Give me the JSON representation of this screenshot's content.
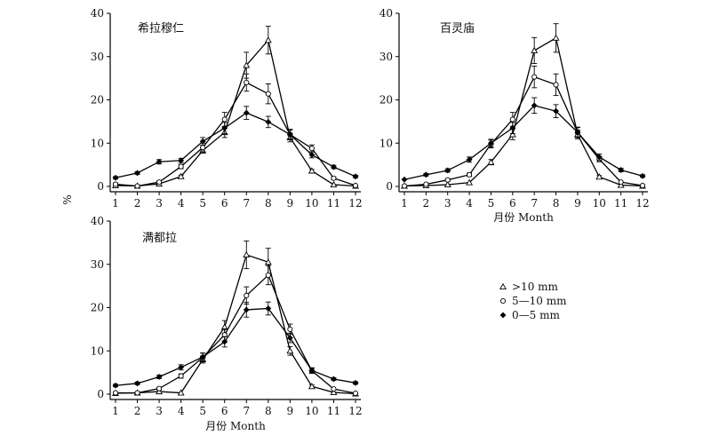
{
  "chart_data": [
    {
      "type": "line",
      "title": "希拉穆仁",
      "xlabel": "",
      "ylabel": "%",
      "categories": [
        "1",
        "2",
        "3",
        "4",
        "5",
        "6",
        "7",
        "8",
        "9",
        "10",
        "11",
        "12"
      ],
      "xlim": [
        1,
        12
      ],
      "ylim": [
        0,
        40
      ],
      "yticks": [
        0,
        10,
        20,
        30,
        40
      ],
      "series": [
        {
          "name": ">10 mm",
          "values": [
            0.2,
            0.1,
            0.6,
            2.3,
            8.3,
            12.5,
            28.0,
            33.8,
            11.3,
            3.6,
            0.4,
            0.1
          ],
          "errors": [
            0.3,
            0.2,
            0.3,
            0.3,
            0.6,
            1.2,
            3.0,
            3.2,
            1.0,
            0.3,
            0.2,
            0.1
          ]
        },
        {
          "name": "5—10 mm",
          "values": [
            0.5,
            0.1,
            1.0,
            4.6,
            9.0,
            15.5,
            24.0,
            21.4,
            12.0,
            8.8,
            1.9,
            0.2
          ],
          "errors": [
            0.3,
            0.2,
            0.3,
            0.5,
            1.0,
            1.6,
            2.0,
            2.3,
            1.2,
            0.8,
            0.3,
            0.1
          ]
        },
        {
          "name": "0—5 mm",
          "values": [
            2.0,
            3.1,
            5.7,
            6.0,
            10.4,
            13.5,
            17.0,
            14.9,
            12.0,
            7.3,
            4.5,
            2.3
          ],
          "errors": [
            0.3,
            0.3,
            0.5,
            0.5,
            0.9,
            1.3,
            1.5,
            1.3,
            1.0,
            0.7,
            0.4,
            0.3
          ]
        }
      ]
    },
    {
      "type": "line",
      "title": "百灵庙",
      "xlabel": "月份  Month",
      "ylabel": "",
      "categories": [
        "1",
        "2",
        "3",
        "4",
        "5",
        "6",
        "7",
        "8",
        "9",
        "10",
        "11",
        "12"
      ],
      "xlim": [
        1,
        12
      ],
      "ylim": [
        0,
        40
      ],
      "yticks": [
        0,
        10,
        20,
        30,
        40
      ],
      "series": [
        {
          "name": ">10 mm",
          "values": [
            0.1,
            0.2,
            0.4,
            0.9,
            5.6,
            12.0,
            31.4,
            34.3,
            12.0,
            2.2,
            0.3,
            0.1
          ],
          "errors": [
            0.1,
            0.1,
            0.2,
            0.2,
            0.6,
            1.2,
            3.0,
            3.3,
            1.0,
            0.3,
            0.1,
            0.1
          ]
        },
        {
          "name": "5—10 mm",
          "values": [
            0.1,
            0.5,
            1.5,
            2.7,
            9.8,
            15.5,
            25.3,
            23.5,
            12.5,
            6.3,
            1.0,
            0.2
          ],
          "errors": [
            0.1,
            0.2,
            0.3,
            0.4,
            0.9,
            1.6,
            2.5,
            2.5,
            1.2,
            0.6,
            0.2,
            0.1
          ]
        },
        {
          "name": "0—5 mm",
          "values": [
            1.6,
            2.7,
            3.7,
            6.2,
            10.0,
            13.5,
            18.7,
            17.4,
            12.5,
            6.8,
            3.8,
            2.4
          ],
          "errors": [
            0.2,
            0.3,
            0.4,
            0.6,
            0.9,
            1.3,
            1.8,
            1.5,
            1.1,
            0.7,
            0.4,
            0.3
          ]
        }
      ]
    },
    {
      "type": "line",
      "title": "满都拉",
      "xlabel": "月份  Month",
      "ylabel": "",
      "categories": [
        "1",
        "2",
        "3",
        "4",
        "5",
        "6",
        "7",
        "8",
        "9",
        "10",
        "11",
        "12"
      ],
      "xlim": [
        1,
        12
      ],
      "ylim": [
        0,
        40
      ],
      "yticks": [
        0,
        10,
        20,
        30,
        40
      ],
      "series": [
        {
          "name": ">10 mm",
          "values": [
            0.2,
            0.3,
            0.6,
            0.3,
            8.0,
            15.5,
            32.2,
            30.5,
            10.0,
            1.8,
            0.4,
            0.1
          ],
          "errors": [
            0.1,
            0.1,
            0.2,
            0.2,
            0.8,
            1.5,
            3.2,
            3.2,
            1.0,
            0.3,
            0.2,
            0.1
          ]
        },
        {
          "name": "5—10 mm",
          "values": [
            0.3,
            0.3,
            1.3,
            4.2,
            8.5,
            13.7,
            22.8,
            27.5,
            15.0,
            5.4,
            1.2,
            0.2
          ],
          "errors": [
            0.1,
            0.1,
            0.3,
            0.5,
            1.0,
            1.4,
            2.0,
            2.2,
            1.2,
            0.6,
            0.2,
            0.1
          ]
        },
        {
          "name": "0—5 mm",
          "values": [
            2.0,
            2.5,
            4.0,
            6.2,
            8.6,
            12.1,
            19.5,
            19.8,
            13.0,
            5.5,
            3.5,
            2.6
          ],
          "errors": [
            0.3,
            0.3,
            0.4,
            0.6,
            0.9,
            1.2,
            1.7,
            1.5,
            1.1,
            0.6,
            0.3,
            0.3
          ]
        }
      ]
    }
  ],
  "legend": {
    "items": [
      {
        "label": ">10 mm",
        "marker": "triangle"
      },
      {
        "label": "5—10 mm",
        "marker": "circle"
      },
      {
        "label": "0—5 mm",
        "marker": "diamond"
      }
    ]
  }
}
